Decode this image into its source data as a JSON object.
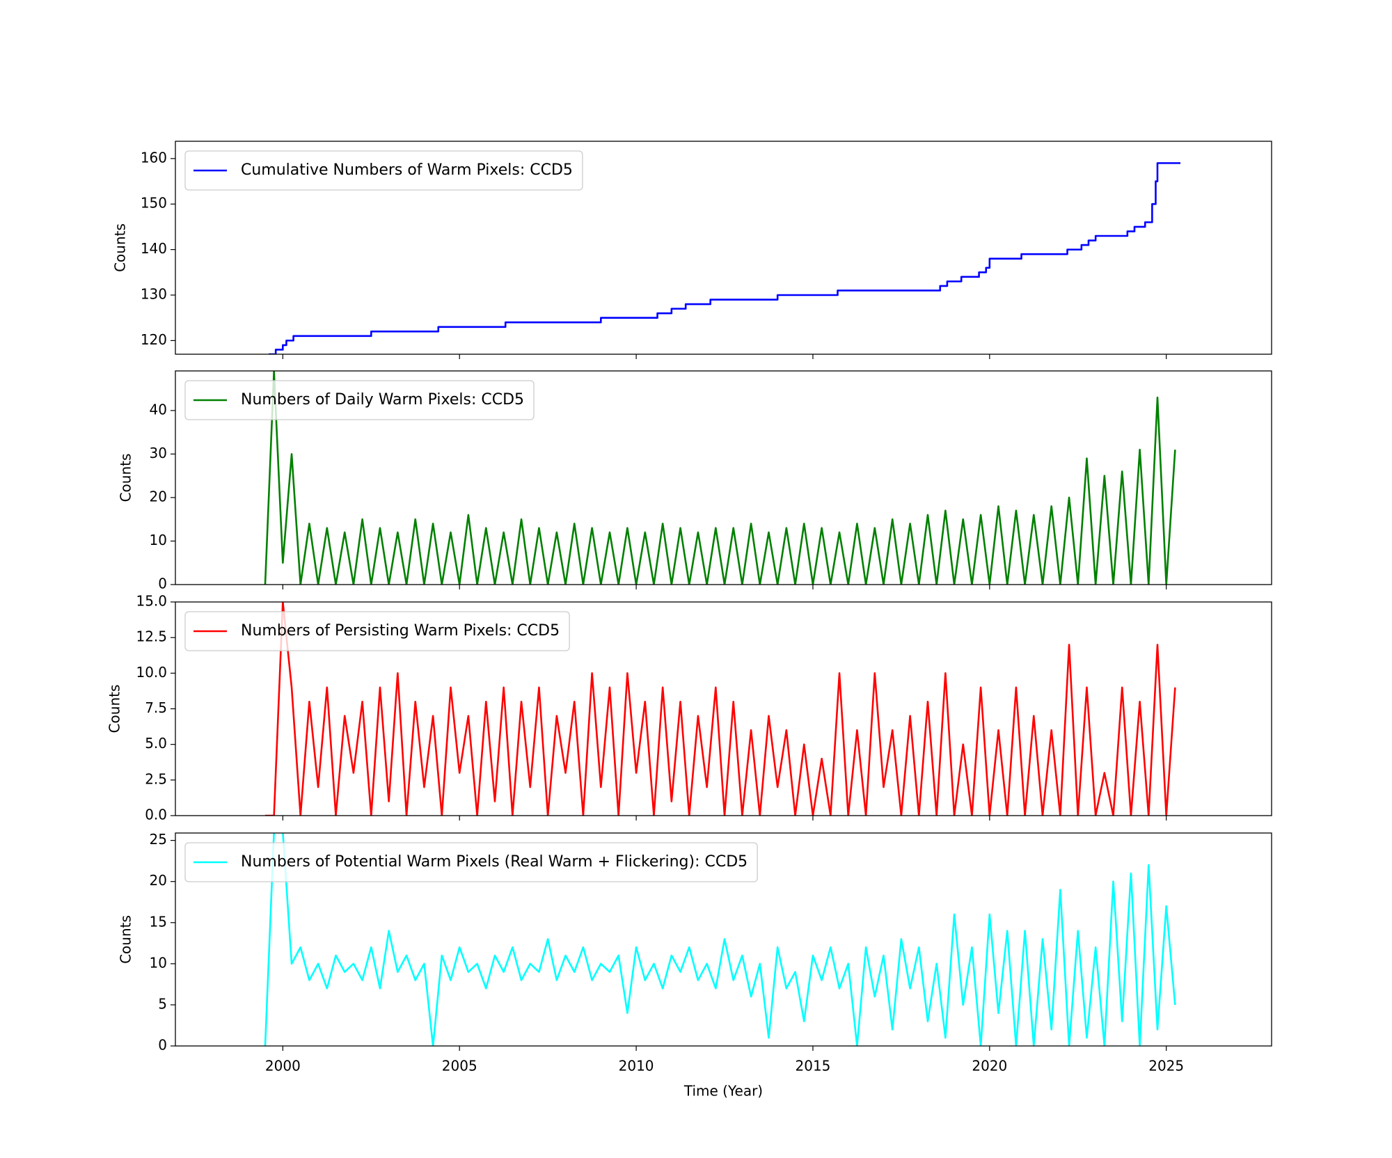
{
  "chart_data": [
    {
      "type": "line",
      "ylabel": "Counts",
      "legend": "upper left",
      "x": [
        1999.6,
        1999.8,
        1999.8,
        2000.0,
        2000.0,
        2000.1,
        2000.1,
        2000.3,
        2000.3,
        2002.5,
        2002.5,
        2004.4,
        2004.4,
        2006.3,
        2006.3,
        2009.0,
        2009.0,
        2010.6,
        2010.6,
        2011.0,
        2011.0,
        2011.4,
        2011.4,
        2012.1,
        2012.1,
        2014.0,
        2014.0,
        2015.7,
        2015.7,
        2018.6,
        2018.6,
        2018.8,
        2018.8,
        2019.2,
        2019.2,
        2019.7,
        2019.7,
        2019.9,
        2019.9,
        2020.0,
        2020.0,
        2020.9,
        2020.9,
        2022.2,
        2022.2,
        2022.6,
        2022.6,
        2022.8,
        2022.8,
        2023.0,
        2023.0,
        2023.9,
        2023.9,
        2024.1,
        2024.1,
        2024.4,
        2024.4,
        2024.6,
        2024.6,
        2024.7,
        2024.7,
        2024.75,
        2024.75,
        2025.4
      ],
      "series": [
        {
          "name": "Cumulative Numbers of Warm Pixels: CCD5",
          "color": "#0000ff",
          "values": [
            117,
            117,
            118,
            118,
            119,
            119,
            120,
            120,
            121,
            121,
            122,
            122,
            123,
            123,
            124,
            124,
            125,
            125,
            126,
            126,
            127,
            127,
            128,
            128,
            129,
            129,
            130,
            130,
            131,
            131,
            132,
            132,
            133,
            133,
            134,
            134,
            135,
            135,
            136,
            136,
            138,
            138,
            139,
            139,
            140,
            140,
            141,
            141,
            142,
            142,
            143,
            143,
            144,
            144,
            145,
            145,
            146,
            146,
            150,
            150,
            155,
            155,
            159,
            159
          ]
        }
      ],
      "xlim": [
        1996.96,
        2027.98
      ],
      "ylim": [
        117.0,
        163.8
      ],
      "yticks": [
        120,
        130,
        140,
        150,
        160
      ]
    },
    {
      "type": "line",
      "ylabel": "Counts",
      "legend": "upper left",
      "x": [
        1999.5,
        1999.75,
        2000.0,
        2000.25,
        2000.5,
        2000.75,
        2001.0,
        2001.25,
        2001.5,
        2001.75,
        2002.0,
        2002.25,
        2002.5,
        2002.75,
        2003.0,
        2003.25,
        2003.5,
        2003.75,
        2004.0,
        2004.25,
        2004.5,
        2004.75,
        2005.0,
        2005.25,
        2005.5,
        2005.75,
        2006.0,
        2006.25,
        2006.5,
        2006.75,
        2007.0,
        2007.25,
        2007.5,
        2007.75,
        2008.0,
        2008.25,
        2008.5,
        2008.75,
        2009.0,
        2009.25,
        2009.5,
        2009.75,
        2010.0,
        2010.25,
        2010.5,
        2010.75,
        2011.0,
        2011.25,
        2011.5,
        2011.75,
        2012.0,
        2012.25,
        2012.5,
        2012.75,
        2013.0,
        2013.25,
        2013.5,
        2013.75,
        2014.0,
        2014.25,
        2014.5,
        2014.75,
        2015.0,
        2015.25,
        2015.5,
        2015.75,
        2016.0,
        2016.25,
        2016.5,
        2016.75,
        2017.0,
        2017.25,
        2017.5,
        2017.75,
        2018.0,
        2018.25,
        2018.5,
        2018.75,
        2019.0,
        2019.25,
        2019.5,
        2019.75,
        2020.0,
        2020.25,
        2020.5,
        2020.75,
        2021.0,
        2021.25,
        2021.5,
        2021.75,
        2022.0,
        2022.25,
        2022.5,
        2022.75,
        2023.0,
        2023.25,
        2023.5,
        2023.75,
        2024.0,
        2024.25,
        2024.5,
        2024.75,
        2025.0,
        2025.25
      ],
      "series": [
        {
          "name": "Numbers of Daily Warm Pixels: CCD5",
          "color": "#008000",
          "values": [
            0,
            49,
            5,
            30,
            0,
            14,
            0,
            13,
            0,
            12,
            0,
            15,
            0,
            13,
            0,
            12,
            0,
            15,
            0,
            14,
            0,
            12,
            0,
            16,
            0,
            13,
            0,
            12,
            0,
            15,
            0,
            13,
            0,
            12,
            0,
            14,
            0,
            13,
            0,
            12,
            0,
            13,
            0,
            12,
            0,
            14,
            0,
            13,
            0,
            12,
            0,
            13,
            0,
            13,
            0,
            14,
            0,
            12,
            0,
            13,
            0,
            14,
            0,
            13,
            0,
            12,
            0,
            14,
            0,
            13,
            0,
            15,
            0,
            14,
            0,
            16,
            0,
            17,
            0,
            15,
            0,
            16,
            0,
            18,
            0,
            17,
            0,
            16,
            0,
            18,
            0,
            20,
            0,
            29,
            0,
            25,
            0,
            26,
            0,
            31,
            0,
            43,
            0,
            31
          ]
        }
      ],
      "xlim": [
        1996.96,
        2027.98
      ],
      "ylim": [
        0,
        49.1
      ],
      "yticks": [
        0,
        10,
        20,
        30,
        40
      ]
    },
    {
      "type": "line",
      "ylabel": "Counts",
      "legend": "upper left",
      "x": [
        1999.5,
        1999.75,
        2000.0,
        2000.25,
        2000.5,
        2000.75,
        2001.0,
        2001.25,
        2001.5,
        2001.75,
        2002.0,
        2002.25,
        2002.5,
        2002.75,
        2003.0,
        2003.25,
        2003.5,
        2003.75,
        2004.0,
        2004.25,
        2004.5,
        2004.75,
        2005.0,
        2005.25,
        2005.5,
        2005.75,
        2006.0,
        2006.25,
        2006.5,
        2006.75,
        2007.0,
        2007.25,
        2007.5,
        2007.75,
        2008.0,
        2008.25,
        2008.5,
        2008.75,
        2009.0,
        2009.25,
        2009.5,
        2009.75,
        2010.0,
        2010.25,
        2010.5,
        2010.75,
        2011.0,
        2011.25,
        2011.5,
        2011.75,
        2012.0,
        2012.25,
        2012.5,
        2012.75,
        2013.0,
        2013.25,
        2013.5,
        2013.75,
        2014.0,
        2014.25,
        2014.5,
        2014.75,
        2015.0,
        2015.25,
        2015.5,
        2015.75,
        2016.0,
        2016.25,
        2016.5,
        2016.75,
        2017.0,
        2017.25,
        2017.5,
        2017.75,
        2018.0,
        2018.25,
        2018.5,
        2018.75,
        2019.0,
        2019.25,
        2019.5,
        2019.75,
        2020.0,
        2020.25,
        2020.5,
        2020.75,
        2021.0,
        2021.25,
        2021.5,
        2021.75,
        2022.0,
        2022.25,
        2022.5,
        2022.75,
        2023.0,
        2023.25,
        2023.5,
        2023.75,
        2024.0,
        2024.25,
        2024.5,
        2024.75,
        2025.0,
        2025.25
      ],
      "series": [
        {
          "name": "Numbers of Persisting Warm Pixels: CCD5",
          "color": "#ff0000",
          "values": [
            0,
            0,
            15,
            9,
            0,
            8,
            2,
            9,
            0,
            7,
            3,
            8,
            0,
            9,
            1,
            10,
            0,
            8,
            2,
            7,
            0,
            9,
            3,
            7,
            0,
            8,
            1,
            9,
            0,
            8,
            2,
            9,
            0,
            7,
            3,
            8,
            0,
            10,
            2,
            9,
            0,
            10,
            3,
            8,
            0,
            9,
            1,
            8,
            0,
            7,
            2,
            9,
            0,
            8,
            0,
            6,
            0,
            7,
            2,
            6,
            0,
            5,
            0,
            4,
            0,
            10,
            0,
            6,
            0,
            10,
            2,
            6,
            0,
            7,
            0,
            8,
            0,
            10,
            0,
            5,
            0,
            9,
            0,
            6,
            0,
            9,
            0,
            7,
            0,
            6,
            0,
            12,
            0,
            9,
            0,
            3,
            0,
            9,
            0,
            8,
            0,
            12,
            0,
            9
          ]
        }
      ],
      "xlim": [
        1996.96,
        2027.98
      ],
      "ylim": [
        0,
        15
      ],
      "yticks": [
        {
          "value": 0,
          "label": "0.0"
        },
        2.5,
        {
          "value": 5,
          "label": "5.0"
        },
        7.5,
        {
          "value": 10,
          "label": "10.0"
        },
        12.5,
        {
          "value": 15,
          "label": "15.0"
        }
      ]
    },
    {
      "type": "line",
      "ylabel": "Counts",
      "xlabel": "Time (Year)",
      "legend": "upper left",
      "x": [
        1999.5,
        1999.75,
        2000.0,
        2000.25,
        2000.5,
        2000.75,
        2001.0,
        2001.25,
        2001.5,
        2001.75,
        2002.0,
        2002.25,
        2002.5,
        2002.75,
        2003.0,
        2003.25,
        2003.5,
        2003.75,
        2004.0,
        2004.25,
        2004.5,
        2004.75,
        2005.0,
        2005.25,
        2005.5,
        2005.75,
        2006.0,
        2006.25,
        2006.5,
        2006.75,
        2007.0,
        2007.25,
        2007.5,
        2007.75,
        2008.0,
        2008.25,
        2008.5,
        2008.75,
        2009.0,
        2009.25,
        2009.5,
        2009.75,
        2010.0,
        2010.25,
        2010.5,
        2010.75,
        2011.0,
        2011.25,
        2011.5,
        2011.75,
        2012.0,
        2012.25,
        2012.5,
        2012.75,
        2013.0,
        2013.25,
        2013.5,
        2013.75,
        2014.0,
        2014.25,
        2014.5,
        2014.75,
        2015.0,
        2015.25,
        2015.5,
        2015.75,
        2016.0,
        2016.25,
        2016.5,
        2016.75,
        2017.0,
        2017.25,
        2017.5,
        2017.75,
        2018.0,
        2018.25,
        2018.5,
        2018.75,
        2019.0,
        2019.25,
        2019.5,
        2019.75,
        2020.0,
        2020.25,
        2020.5,
        2020.75,
        2021.0,
        2021.25,
        2021.5,
        2021.75,
        2022.0,
        2022.25,
        2022.5,
        2022.75,
        2023.0,
        2023.25,
        2023.5,
        2023.75,
        2024.0,
        2024.25,
        2024.5,
        2024.75,
        2025.0,
        2025.25
      ],
      "series": [
        {
          "name": "Numbers of Potential Warm Pixels (Real Warm + Flickering): CCD5",
          "color": "#00ffff",
          "values": [
            0,
            26,
            26,
            10,
            12,
            8,
            10,
            7,
            11,
            9,
            10,
            8,
            12,
            7,
            14,
            9,
            11,
            8,
            10,
            0,
            11,
            8,
            12,
            9,
            10,
            7,
            11,
            9,
            12,
            8,
            10,
            9,
            13,
            8,
            11,
            9,
            12,
            8,
            10,
            9,
            11,
            4,
            12,
            8,
            10,
            7,
            11,
            9,
            12,
            8,
            10,
            7,
            13,
            8,
            11,
            6,
            10,
            1,
            12,
            7,
            9,
            3,
            11,
            8,
            12,
            7,
            10,
            0,
            12,
            6,
            11,
            2,
            13,
            7,
            12,
            3,
            10,
            1,
            16,
            5,
            12,
            0,
            16,
            4,
            14,
            0,
            14,
            0,
            13,
            2,
            19,
            0,
            14,
            1,
            12,
            0,
            20,
            3,
            21,
            0,
            22,
            2,
            17,
            5
          ]
        }
      ],
      "xlim": [
        1996.96,
        2027.98
      ],
      "ylim": [
        0,
        25.9
      ],
      "yticks": [
        0,
        5,
        10,
        15,
        20,
        25
      ],
      "xticks": [
        2000,
        2005,
        2010,
        2015,
        2020,
        2025
      ]
    }
  ]
}
